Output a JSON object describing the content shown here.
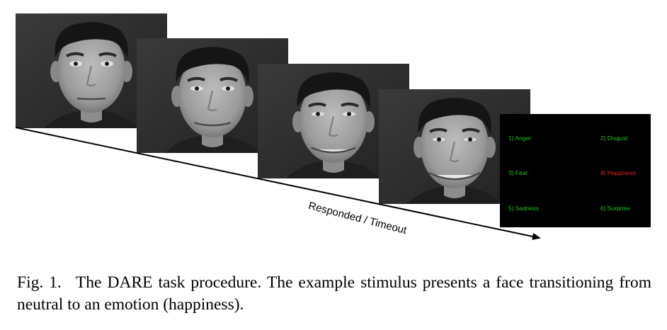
{
  "figure": {
    "timeline_label": "Responded / Timeout",
    "stimulus_frames": [
      {
        "expression": "neutral",
        "smile_level": 0.0
      },
      {
        "expression": "slight-smile",
        "smile_level": 0.35
      },
      {
        "expression": "smile",
        "smile_level": 0.7
      },
      {
        "expression": "happiness",
        "smile_level": 1.0
      }
    ],
    "response_screen": {
      "options": [
        {
          "label": "1) Anger",
          "selected": false
        },
        {
          "label": "2) Disgust",
          "selected": false
        },
        {
          "label": "3) Fear",
          "selected": false
        },
        {
          "label": "4) Happiness",
          "selected": true
        },
        {
          "label": "5) Sadness",
          "selected": false
        },
        {
          "label": "6) Surprise",
          "selected": false
        }
      ],
      "colors": {
        "option": "#22c322",
        "selected": "#e0261e",
        "background": "#000000"
      }
    }
  },
  "caption": {
    "label": "Fig. 1.",
    "text": "The DARE task procedure. The example stimulus presents a face transitioning from neutral to an emotion (happiness)."
  }
}
